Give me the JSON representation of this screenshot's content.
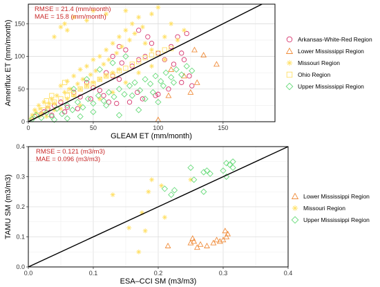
{
  "chart_data": [
    {
      "type": "scatter",
      "xlabel": "GLEAM ET (mm/month)",
      "ylabel": "Ameriflux ET (mm/month)",
      "xlim": [
        0,
        190
      ],
      "ylim": [
        0,
        180
      ],
      "xticks": [
        0,
        50,
        100,
        150
      ],
      "yticks": [
        0,
        50,
        100,
        150
      ],
      "grid": true,
      "legend_position": "right",
      "annotations": [
        "RMSE = 21.4 (mm/month)",
        "MAE = 15.8 (mm/month)"
      ],
      "reference_line": "1:1",
      "series": [
        {
          "name": "Arkansas-White-Red Region",
          "marker": "circle",
          "color": "#d6336c",
          "points": [
            [
              5,
              8
            ],
            [
              12,
              15
            ],
            [
              18,
              10
            ],
            [
              25,
              30
            ],
            [
              30,
              22
            ],
            [
              35,
              45
            ],
            [
              40,
              38
            ],
            [
              45,
              60
            ],
            [
              50,
              52
            ],
            [
              55,
              48
            ],
            [
              60,
              75
            ],
            [
              65,
              70
            ],
            [
              70,
              65
            ],
            [
              72,
              90
            ],
            [
              75,
              110
            ],
            [
              80,
              85
            ],
            [
              85,
              95
            ],
            [
              90,
              100
            ],
            [
              92,
              130
            ],
            [
              95,
              120
            ],
            [
              100,
              105
            ],
            [
              105,
              95
            ],
            [
              110,
              115
            ],
            [
              112,
              88
            ],
            [
              115,
              130
            ],
            [
              118,
              105
            ],
            [
              120,
              95
            ],
            [
              122,
              135
            ],
            [
              124,
              70
            ],
            [
              126,
              55
            ],
            [
              118,
              60
            ],
            [
              108,
              50
            ],
            [
              98,
              40
            ],
            [
              88,
              35
            ],
            [
              78,
              30
            ],
            [
              68,
              28
            ],
            [
              58,
              40
            ],
            [
              48,
              35
            ],
            [
              38,
              20
            ],
            [
              28,
              15
            ],
            [
              20,
              25
            ],
            [
              15,
              20
            ],
            [
              10,
              12
            ],
            [
              65,
              100
            ],
            [
              70,
              115
            ],
            [
              85,
              140
            ],
            [
              62,
              30
            ],
            [
              84,
              45
            ],
            [
              100,
              42
            ]
          ]
        },
        {
          "name": "Lower Mississippi Region",
          "marker": "triangle",
          "color": "#f08c3a",
          "points": [
            [
              100,
              3
            ],
            [
              125,
              45
            ],
            [
              128,
              110
            ],
            [
              135,
              102
            ],
            [
              145,
              88
            ],
            [
              130,
              60
            ],
            [
              120,
              70
            ],
            [
              110,
              80
            ],
            [
              108,
              40
            ]
          ]
        },
        {
          "name": "Missouri Region",
          "marker": "star",
          "color": "#ffe066",
          "points": [
            [
              2,
              5
            ],
            [
              5,
              18
            ],
            [
              8,
              25
            ],
            [
              10,
              12
            ],
            [
              12,
              30
            ],
            [
              15,
              22
            ],
            [
              18,
              35
            ],
            [
              20,
              28
            ],
            [
              22,
              40
            ],
            [
              25,
              55
            ],
            [
              28,
              45
            ],
            [
              30,
              62
            ],
            [
              32,
              50
            ],
            [
              35,
              70
            ],
            [
              38,
              58
            ],
            [
              40,
              80
            ],
            [
              42,
              65
            ],
            [
              45,
              85
            ],
            [
              48,
              72
            ],
            [
              50,
              95
            ],
            [
              52,
              78
            ],
            [
              55,
              100
            ],
            [
              58,
              88
            ],
            [
              60,
              110
            ],
            [
              62,
              95
            ],
            [
              65,
              120
            ],
            [
              68,
              105
            ],
            [
              70,
              130
            ],
            [
              72,
              115
            ],
            [
              75,
              140
            ],
            [
              78,
              125
            ],
            [
              80,
              150
            ],
            [
              82,
              135
            ],
            [
              85,
              160
            ],
            [
              88,
              145
            ],
            [
              90,
              120
            ],
            [
              95,
              110
            ],
            [
              100,
              175
            ],
            [
              105,
              130
            ],
            [
              110,
              150
            ],
            [
              115,
              125
            ],
            [
              120,
              140
            ],
            [
              25,
              20
            ],
            [
              30,
              35
            ],
            [
              35,
              40
            ],
            [
              40,
              50
            ],
            [
              45,
              55
            ],
            [
              50,
              60
            ],
            [
              55,
              65
            ],
            [
              60,
              70
            ],
            [
              65,
              75
            ],
            [
              70,
              80
            ],
            [
              3,
              10
            ],
            [
              6,
              14
            ],
            [
              9,
              20
            ],
            [
              14,
              8
            ],
            [
              16,
              28
            ],
            [
              20,
              18
            ],
            [
              40,
              25
            ],
            [
              55,
              35
            ],
            [
              65,
              45
            ],
            [
              75,
              60
            ],
            [
              85,
              75
            ],
            [
              95,
              85
            ],
            [
              105,
              95
            ],
            [
              30,
              140
            ],
            [
              28,
              150
            ],
            [
              35,
              160
            ],
            [
              50,
              170
            ],
            [
              45,
              155
            ],
            [
              60,
              165
            ],
            [
              20,
              130
            ],
            [
              25,
              145
            ],
            [
              75,
              170
            ],
            [
              95,
              165
            ]
          ]
        },
        {
          "name": "Ohio Region",
          "marker": "square",
          "color": "#ffe066",
          "points": [
            [
              8,
              10
            ],
            [
              12,
              18
            ],
            [
              15,
              25
            ],
            [
              20,
              30
            ],
            [
              25,
              35
            ],
            [
              30,
              40
            ],
            [
              35,
              42
            ],
            [
              40,
              50
            ],
            [
              45,
              55
            ],
            [
              50,
              58
            ],
            [
              55,
              65
            ],
            [
              60,
              70
            ],
            [
              65,
              72
            ],
            [
              70,
              78
            ],
            [
              75,
              82
            ],
            [
              80,
              88
            ],
            [
              85,
              92
            ],
            [
              90,
              98
            ],
            [
              95,
              102
            ],
            [
              100,
              105
            ],
            [
              105,
              110
            ],
            [
              110,
              112
            ],
            [
              28,
              60
            ],
            [
              32,
              48
            ],
            [
              18,
              40
            ],
            [
              14,
              32
            ]
          ]
        },
        {
          "name": "Upper Mississippi Region",
          "marker": "diamond",
          "color": "#69db7c",
          "points": [
            [
              3,
              4
            ],
            [
              6,
              10
            ],
            [
              10,
              6
            ],
            [
              14,
              14
            ],
            [
              18,
              8
            ],
            [
              22,
              20
            ],
            [
              26,
              12
            ],
            [
              30,
              25
            ],
            [
              34,
              18
            ],
            [
              38,
              30
            ],
            [
              42,
              22
            ],
            [
              46,
              35
            ],
            [
              50,
              28
            ],
            [
              54,
              40
            ],
            [
              58,
              32
            ],
            [
              62,
              45
            ],
            [
              66,
              38
            ],
            [
              70,
              50
            ],
            [
              74,
              42
            ],
            [
              78,
              55
            ],
            [
              82,
              60
            ],
            [
              86,
              48
            ],
            [
              90,
              65
            ],
            [
              94,
              58
            ],
            [
              98,
              70
            ],
            [
              102,
              62
            ],
            [
              106,
              75
            ],
            [
              110,
              68
            ],
            [
              114,
              80
            ],
            [
              118,
              72
            ],
            [
              122,
              85
            ],
            [
              126,
              78
            ],
            [
              80,
              40
            ],
            [
              90,
              35
            ],
            [
              100,
              30
            ],
            [
              60,
              25
            ],
            [
              50,
              15
            ],
            [
              40,
              8
            ],
            [
              30,
              5
            ],
            [
              20,
              3
            ],
            [
              70,
              10
            ],
            [
              85,
              18
            ],
            [
              96,
              45
            ],
            [
              104,
              55
            ],
            [
              112,
              60
            ],
            [
              55,
              80
            ],
            [
              45,
              65
            ],
            [
              65,
              90
            ],
            [
              75,
              100
            ],
            [
              35,
              50
            ]
          ]
        }
      ]
    },
    {
      "type": "scatter",
      "xlabel": "ESA–CCI SM (m3/m3)",
      "ylabel": "TAMU SM (m3/m3)",
      "xlim": [
        0.0,
        0.4
      ],
      "ylim": [
        0.0,
        0.4
      ],
      "xticks": [
        0.0,
        0.1,
        0.2,
        0.3,
        0.4
      ],
      "yticks": [
        0.0,
        0.1,
        0.2,
        0.3,
        0.4
      ],
      "grid": true,
      "legend_position": "right",
      "annotations": [
        "RMSE = 0.121 (m3/m3)",
        "MAE = 0.096 (m3/m3)"
      ],
      "reference_line": "1:1",
      "series": [
        {
          "name": "Lower Mississippi Region",
          "marker": "triangle",
          "color": "#f08c3a",
          "points": [
            [
              0.215,
              0.07
            ],
            [
              0.25,
              0.08
            ],
            [
              0.253,
              0.095
            ],
            [
              0.255,
              0.085
            ],
            [
              0.26,
              0.065
            ],
            [
              0.265,
              0.075
            ],
            [
              0.275,
              0.07
            ],
            [
              0.285,
              0.08
            ],
            [
              0.29,
              0.09
            ],
            [
              0.295,
              0.085
            ],
            [
              0.3,
              0.09
            ],
            [
              0.303,
              0.12
            ],
            [
              0.305,
              0.1
            ],
            [
              0.307,
              0.11
            ]
          ]
        },
        {
          "name": "Missouri Region",
          "marker": "star",
          "color": "#ffe066",
          "points": [
            [
              0.155,
              0.13
            ],
            [
              0.17,
              0.05
            ],
            [
              0.175,
              0.18
            ],
            [
              0.18,
              0.12
            ],
            [
              0.185,
              0.25
            ],
            [
              0.19,
              0.29
            ],
            [
              0.205,
              0.27
            ],
            [
              0.21,
              0.165
            ],
            [
              0.25,
              0.29
            ],
            [
              0.13,
              0.24
            ]
          ]
        },
        {
          "name": "Upper Mississippi Region",
          "marker": "diamond",
          "color": "#69db7c",
          "points": [
            [
              0.21,
              0.26
            ],
            [
              0.22,
              0.24
            ],
            [
              0.225,
              0.255
            ],
            [
              0.25,
              0.33
            ],
            [
              0.255,
              0.29
            ],
            [
              0.27,
              0.315
            ],
            [
              0.275,
              0.32
            ],
            [
              0.28,
              0.31
            ],
            [
              0.27,
              0.25
            ],
            [
              0.3,
              0.32
            ],
            [
              0.305,
              0.345
            ],
            [
              0.305,
              0.3
            ],
            [
              0.31,
              0.34
            ],
            [
              0.315,
              0.35
            ],
            [
              0.315,
              0.33
            ]
          ]
        }
      ]
    }
  ]
}
